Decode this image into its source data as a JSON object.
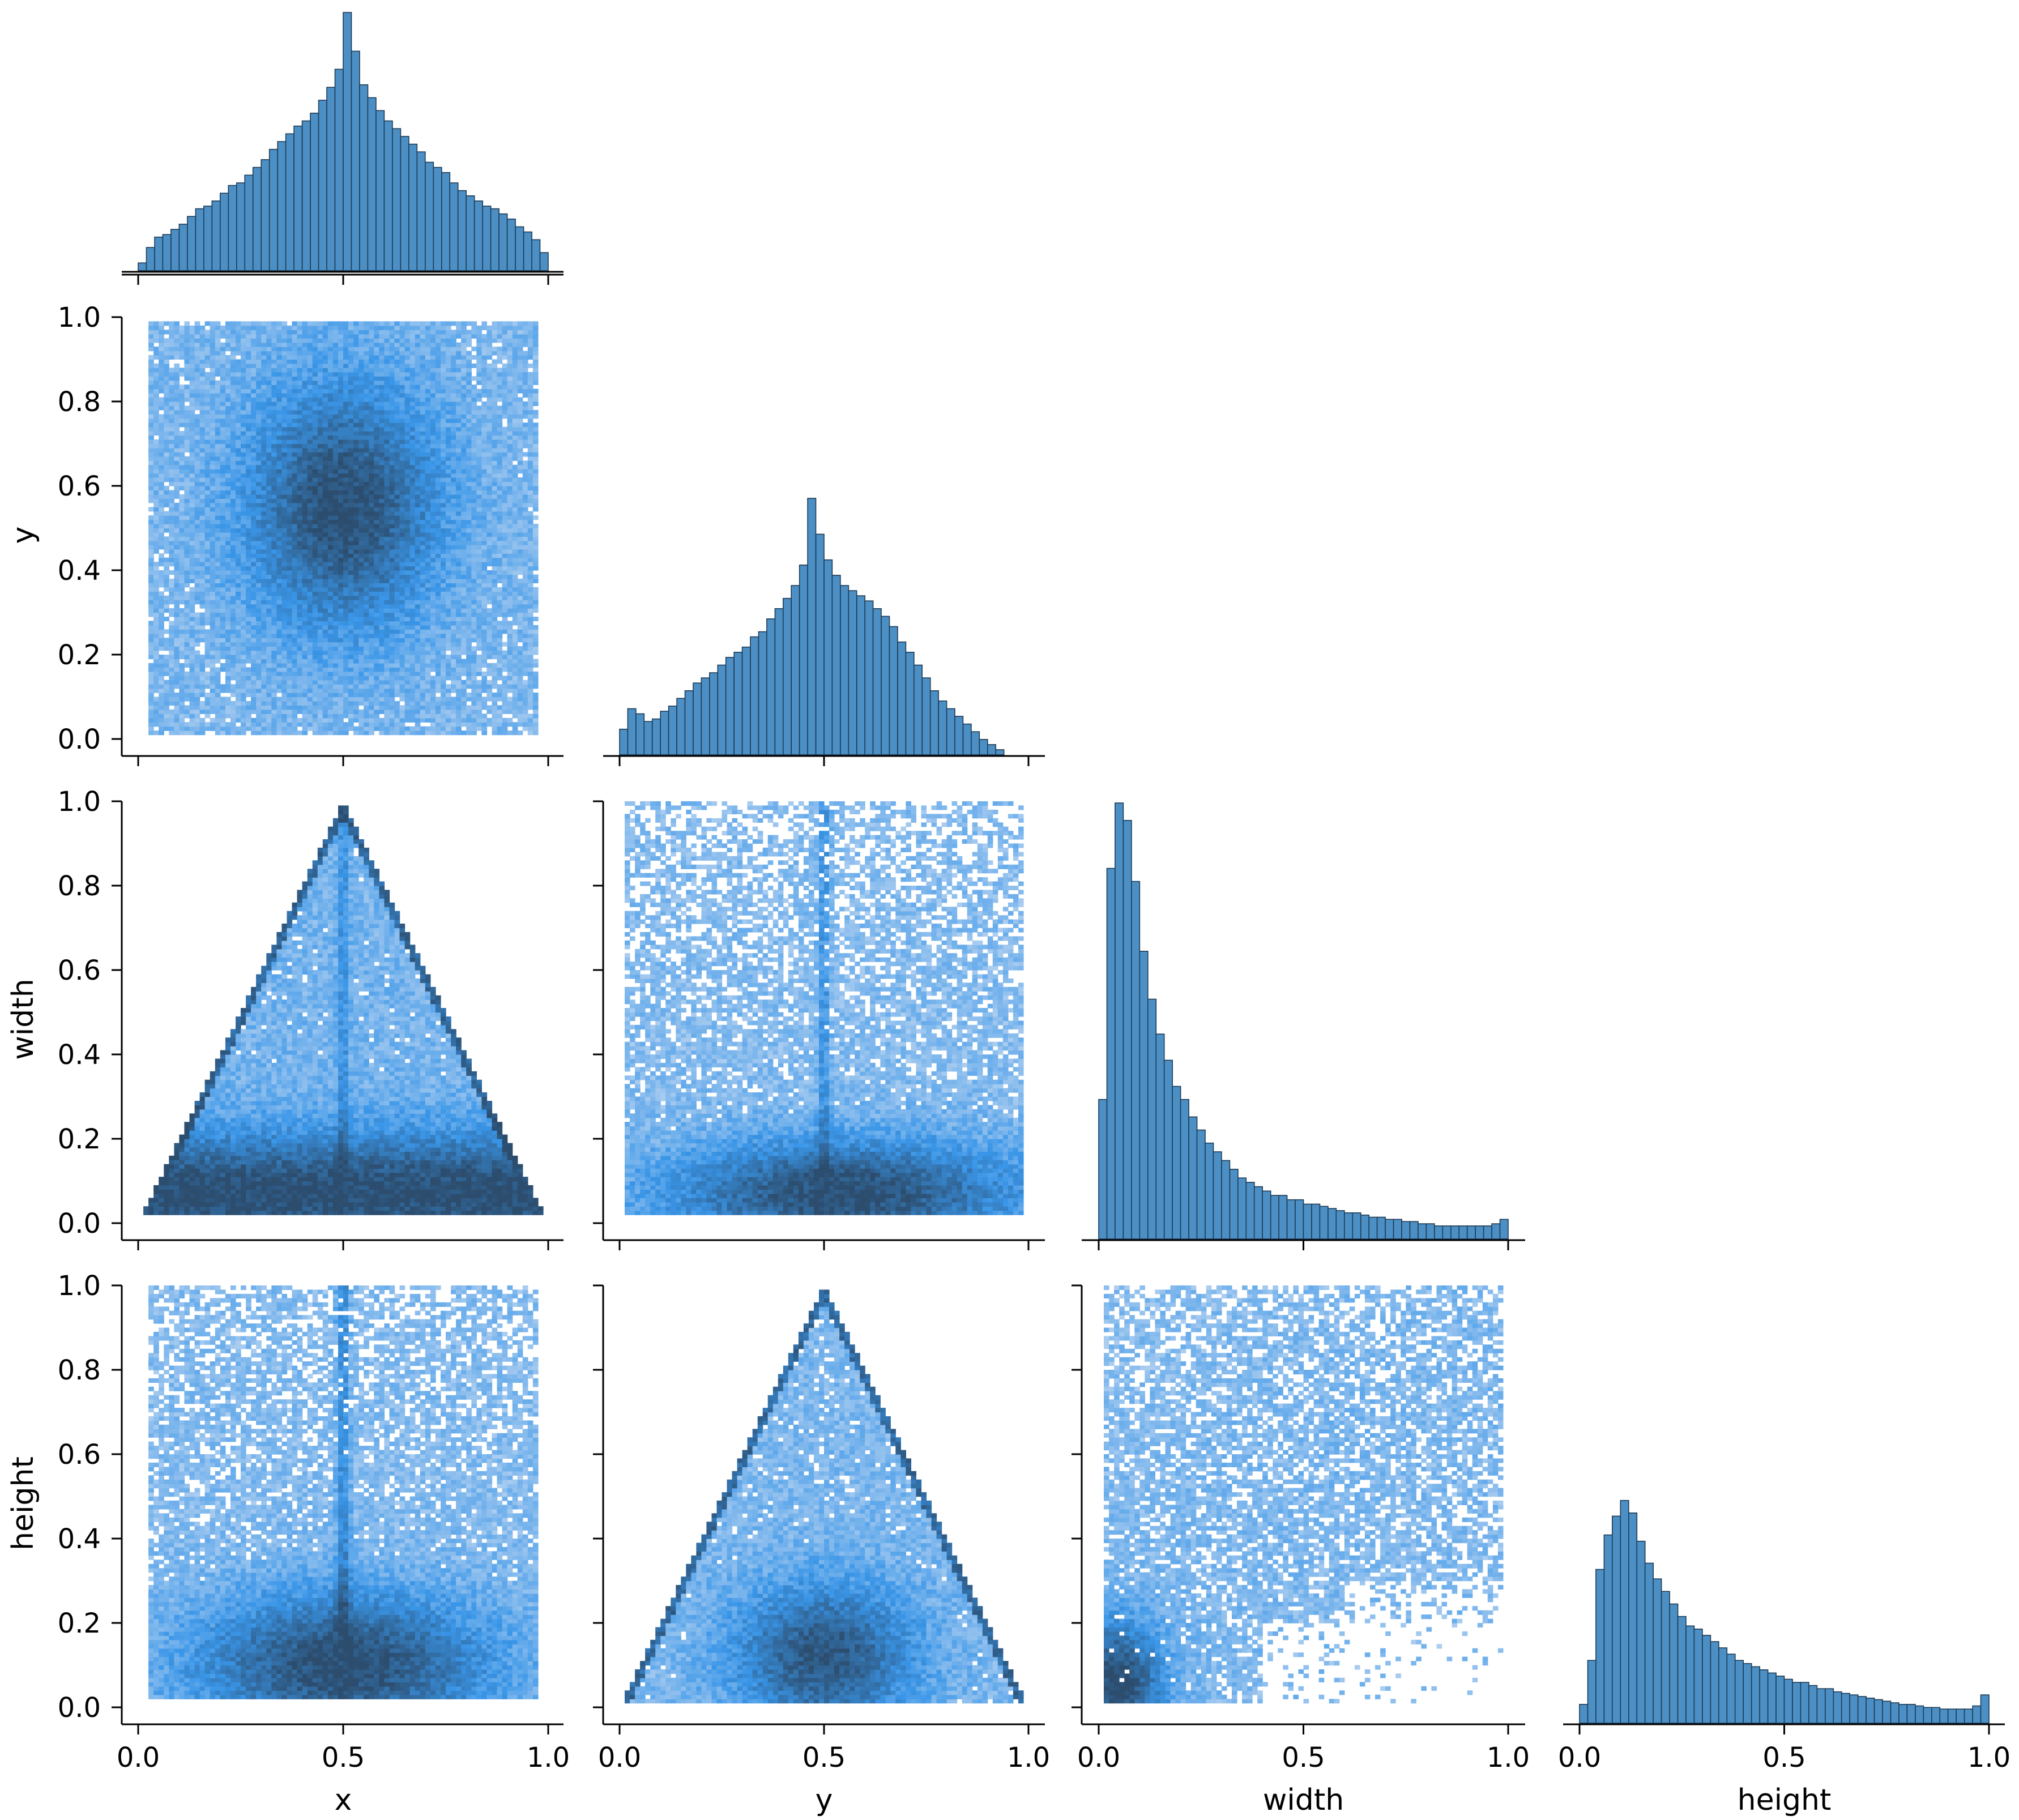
{
  "chart_data": {
    "type": "pairplot",
    "variables": [
      "x",
      "y",
      "width",
      "height"
    ],
    "axis_labels": {
      "x": "x",
      "y": "y",
      "width": "width",
      "height": "height"
    },
    "ticks": [
      0.0,
      0.2,
      0.4,
      0.6,
      0.8,
      1.0
    ],
    "tick_labels": [
      "0.0",
      "0.2",
      "0.4",
      "0.6",
      "0.8",
      "1.0"
    ],
    "bottom_ticks": [
      0.0,
      0.5,
      1.0
    ],
    "bottom_tick_labels": [
      "0.0",
      "0.5",
      "1.0"
    ],
    "range": [
      0,
      1
    ],
    "colors": {
      "bar": "#4c8fc4",
      "bar_edge": "#1f3b55",
      "density_low": "#c6daf2",
      "density_mid": "#3a96e8",
      "density_high": "#2c4d6e"
    },
    "diagonal": [
      {
        "variable": "x",
        "type": "histogram",
        "bins": 50,
        "description": "symmetric peak at 0.5",
        "bin_heights": [
          0.03,
          0.09,
          0.13,
          0.14,
          0.16,
          0.18,
          0.21,
          0.24,
          0.25,
          0.27,
          0.3,
          0.33,
          0.34,
          0.37,
          0.4,
          0.43,
          0.47,
          0.5,
          0.53,
          0.56,
          0.58,
          0.61,
          0.66,
          0.71,
          0.78,
          1.0,
          0.85,
          0.72,
          0.67,
          0.62,
          0.58,
          0.55,
          0.52,
          0.49,
          0.46,
          0.42,
          0.4,
          0.38,
          0.34,
          0.31,
          0.29,
          0.27,
          0.25,
          0.24,
          0.22,
          0.2,
          0.17,
          0.15,
          0.12,
          0.07
        ]
      },
      {
        "variable": "y",
        "type": "histogram",
        "bins": 50,
        "description": "peak near 0.5, skewed",
        "bin_heights": [
          0.1,
          0.18,
          0.16,
          0.13,
          0.14,
          0.17,
          0.19,
          0.22,
          0.25,
          0.28,
          0.3,
          0.32,
          0.35,
          0.38,
          0.4,
          0.42,
          0.46,
          0.48,
          0.53,
          0.57,
          0.61,
          0.66,
          0.74,
          1.0,
          0.86,
          0.76,
          0.7,
          0.66,
          0.64,
          0.62,
          0.6,
          0.57,
          0.54,
          0.5,
          0.44,
          0.4,
          0.35,
          0.3,
          0.25,
          0.21,
          0.18,
          0.15,
          0.12,
          0.09,
          0.06,
          0.04,
          0.02,
          0.0,
          0.0,
          0.0
        ]
      },
      {
        "variable": "width",
        "type": "histogram",
        "bins": 50,
        "description": "right skewed, peak near 0.07",
        "bin_heights": [
          0.32,
          0.85,
          1.0,
          0.96,
          0.82,
          0.66,
          0.55,
          0.47,
          0.41,
          0.35,
          0.32,
          0.28,
          0.25,
          0.22,
          0.2,
          0.18,
          0.16,
          0.14,
          0.13,
          0.12,
          0.11,
          0.1,
          0.1,
          0.09,
          0.09,
          0.08,
          0.08,
          0.075,
          0.07,
          0.065,
          0.06,
          0.06,
          0.055,
          0.05,
          0.05,
          0.045,
          0.045,
          0.04,
          0.04,
          0.035,
          0.035,
          0.03,
          0.03,
          0.03,
          0.03,
          0.03,
          0.03,
          0.03,
          0.035,
          0.045
        ]
      },
      {
        "variable": "height",
        "type": "histogram",
        "bins": 50,
        "description": "right skewed, peak near 0.1",
        "bin_heights": [
          0.06,
          0.2,
          0.49,
          0.6,
          0.66,
          0.71,
          0.67,
          0.58,
          0.51,
          0.46,
          0.42,
          0.38,
          0.34,
          0.31,
          0.3,
          0.28,
          0.26,
          0.24,
          0.22,
          0.2,
          0.19,
          0.18,
          0.17,
          0.16,
          0.15,
          0.14,
          0.13,
          0.13,
          0.12,
          0.11,
          0.11,
          0.1,
          0.095,
          0.09,
          0.085,
          0.08,
          0.075,
          0.07,
          0.065,
          0.06,
          0.06,
          0.055,
          0.05,
          0.05,
          0.045,
          0.045,
          0.045,
          0.045,
          0.055,
          0.09
        ]
      }
    ],
    "off_diagonal": [
      {
        "row": "y",
        "col": "x",
        "type": "heatmap",
        "description": "dense center near (0.5, 0.55), fills unit square"
      },
      {
        "row": "width",
        "col": "x",
        "type": "heatmap",
        "description": "triangular envelope, apex at x=0.5, width=1.0"
      },
      {
        "row": "width",
        "col": "y",
        "type": "heatmap",
        "description": "dense near width 0.05-0.15, vertical streak at y=0.5"
      },
      {
        "row": "height",
        "col": "x",
        "type": "heatmap",
        "description": "dense near height 0.05-0.2, vertical streak at x=0.5"
      },
      {
        "row": "height",
        "col": "y",
        "type": "heatmap",
        "description": "triangular envelope, apex at y=0.5, height=1.0"
      },
      {
        "row": "height",
        "col": "width",
        "type": "heatmap",
        "description": "dense near origin, scattered to top-right"
      }
    ]
  }
}
